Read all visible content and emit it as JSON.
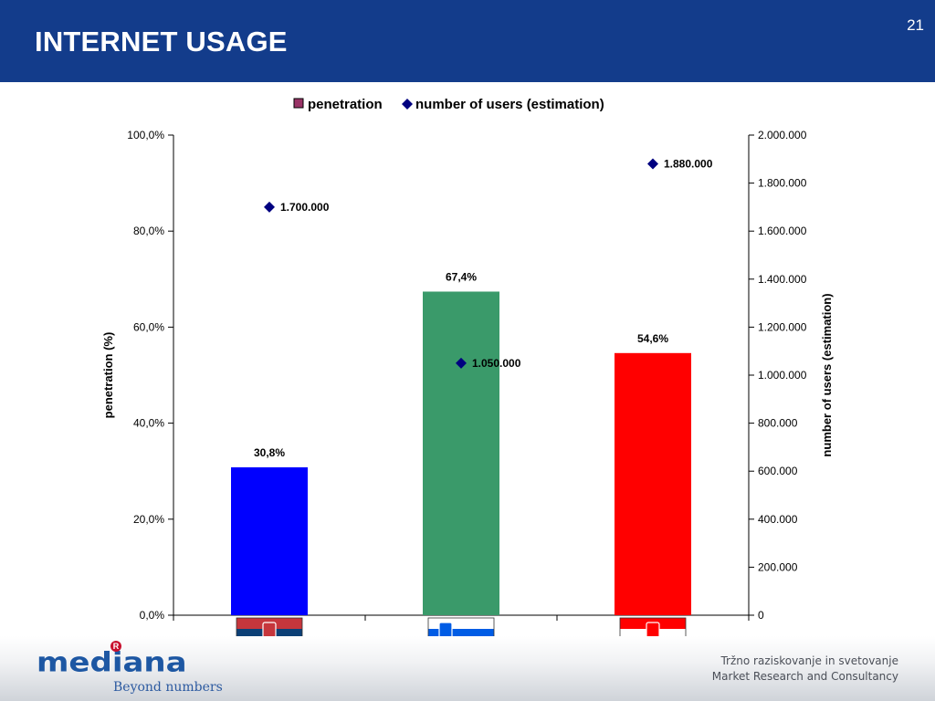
{
  "slide": {
    "title": "INTERNET USAGE",
    "number": "21"
  },
  "footer": {
    "logo_text": "mediana",
    "registered_mark": "R",
    "tagline": "Beyond numbers",
    "line1": "Tržno raziskovanje in svetovanje",
    "line2": "Market Research and Consultancy"
  },
  "colors": {
    "header_bg": "#133c8b",
    "bar_serbia": "#0000ff",
    "bar_slovenia": "#3a9a6a",
    "bar_croatia": "#ff0000",
    "users_marker": "#000080",
    "legend_penetration": "#993366"
  },
  "chart_data": {
    "type": "bar",
    "categories": [
      "Serbia",
      "Slovenia",
      "Croatia"
    ],
    "category_icons": [
      "serbia-flag",
      "slovenia-flag",
      "croatia-flag"
    ],
    "series": [
      {
        "name": "penetration",
        "type": "bar",
        "axis": "left",
        "values": [
          30.8,
          67.4,
          54.6
        ],
        "data_labels": [
          "30,8%",
          "67,4%",
          "54,6%"
        ]
      },
      {
        "name": "number of users (estimation)",
        "type": "scatter",
        "axis": "right",
        "values": [
          1700000,
          1050000,
          1880000
        ],
        "data_labels": [
          "1.700.000",
          "1.050.000",
          "1.880.000"
        ]
      }
    ],
    "ylabel": "penetration (%)",
    "y2label": "number of users (estimation)",
    "ylim": [
      0,
      100
    ],
    "y2lim": [
      0,
      2000000
    ],
    "yticks": [
      "0,0%",
      "20,0%",
      "40,0%",
      "60,0%",
      "80,0%",
      "100,0%"
    ],
    "y2ticks": [
      "0",
      "200.000",
      "400.000",
      "600.000",
      "800.000",
      "1.000.000",
      "1.200.000",
      "1.400.000",
      "1.600.000",
      "1.800.000",
      "2.000.000"
    ],
    "legend_position": "top",
    "grid": false
  }
}
